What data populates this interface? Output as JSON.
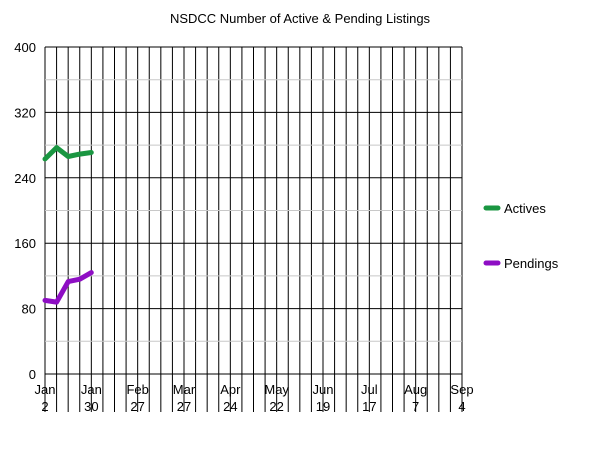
{
  "chart_data": {
    "type": "line",
    "title": "NSDCC Number of Active & Pending Listings",
    "xlabel": "",
    "ylabel": "",
    "ylim": [
      0,
      400
    ],
    "y_ticks": [
      "0",
      "80",
      "160",
      "240",
      "320",
      "400"
    ],
    "x_tick_labels": [
      {
        "month": "Jan",
        "day": "2"
      },
      {
        "month": "Jan",
        "day": "30"
      },
      {
        "month": "Feb",
        "day": "27"
      },
      {
        "month": "Mar",
        "day": "27"
      },
      {
        "month": "Apr",
        "day": "24"
      },
      {
        "month": "May",
        "day": "22"
      },
      {
        "month": "Jun",
        "day": "19"
      },
      {
        "month": "Jul",
        "day": "17"
      },
      {
        "month": "Aug",
        "day": "7"
      },
      {
        "month": "Sep",
        "day": "4"
      }
    ],
    "x_dates": [
      "Jan 2",
      "Jan 9",
      "Jan 16",
      "Jan 23",
      "Jan 30"
    ],
    "grid": true,
    "legend_position": "right",
    "series": [
      {
        "name": "Actives",
        "color": "#1a9641",
        "values": [
          263,
          277,
          266,
          269,
          271
        ]
      },
      {
        "name": "Pendings",
        "color": "#8e0ec4",
        "values": [
          90,
          88,
          113,
          116,
          124
        ]
      }
    ]
  }
}
